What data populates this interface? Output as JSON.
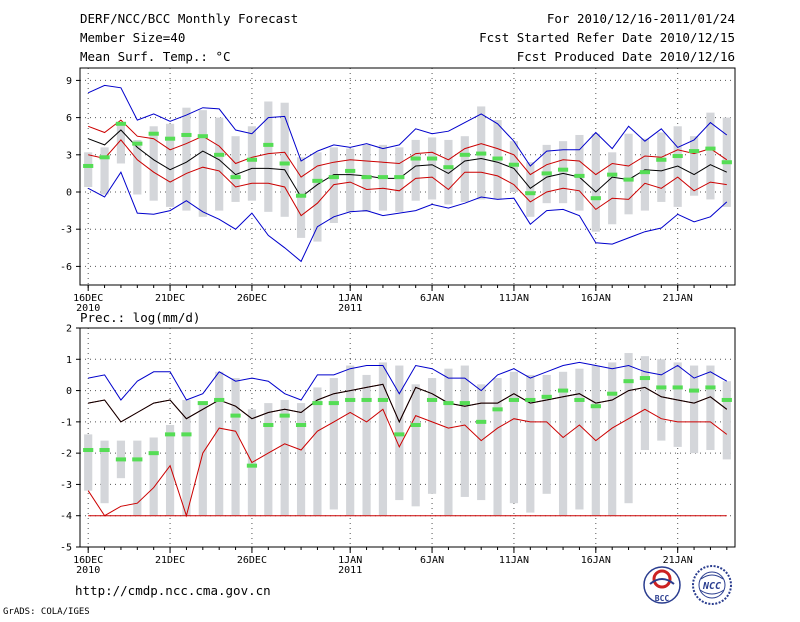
{
  "header": {
    "title": "DERF/NCC/BCC Monthly Forecast",
    "member_size": "Member Size=40",
    "variable": "Mean Surf. Temp.: °C",
    "forecast_period": "For 2010/12/16-2011/01/24",
    "start_date": "Fcst Started Refer Date 2010/12/15",
    "produced_date": "Fcst Produced Date 2010/12/16"
  },
  "footer": {
    "url": "http://cmdp.ncc.cma.gov.cn",
    "credit": "GrADS: COLA/IGES",
    "logo_left_text": "BCC",
    "logo_right_text": "NCC"
  },
  "colors": {
    "envelope": "#0000cc",
    "spread": "#cc0000",
    "mean": "#000000",
    "bar": "#d4d6da",
    "median": "#55dd55",
    "grid": "#555555"
  },
  "chart_data": [
    {
      "type": "line",
      "panel": "temperature",
      "title": "Mean Surf. Temp.: °C",
      "ylabel": "°C",
      "ylim": [
        -7.5,
        10
      ],
      "yticks": [
        9,
        6,
        3,
        0,
        -3,
        -6
      ],
      "xlim": [
        0.5,
        40.5
      ],
      "xticks": [
        {
          "day": 1,
          "label": "16DEC",
          "sublabel": "2010"
        },
        {
          "day": 6,
          "label": "21DEC",
          "sublabel": ""
        },
        {
          "day": 11,
          "label": "26DEC",
          "sublabel": ""
        },
        {
          "day": 17,
          "label": "1JAN",
          "sublabel": "2011"
        },
        {
          "day": 22,
          "label": "6JAN",
          "sublabel": ""
        },
        {
          "day": 27,
          "label": "11JAN",
          "sublabel": ""
        },
        {
          "day": 32,
          "label": "16JAN",
          "sublabel": ""
        },
        {
          "day": 37,
          "label": "21JAN",
          "sublabel": ""
        }
      ],
      "days": [
        1,
        2,
        3,
        4,
        5,
        6,
        7,
        8,
        9,
        10,
        11,
        12,
        13,
        14,
        15,
        16,
        17,
        18,
        19,
        20,
        21,
        22,
        23,
        24,
        25,
        26,
        27,
        28,
        29,
        30,
        31,
        32,
        33,
        34,
        35,
        36,
        37,
        38,
        39,
        40
      ],
      "bar_top": [
        3.2,
        3.6,
        5.5,
        4.2,
        5.3,
        5.5,
        6.8,
        6.6,
        6.0,
        4.5,
        5.3,
        7.3,
        7.2,
        2.8,
        3.2,
        3.6,
        3.5,
        3.8,
        3.8,
        3.6,
        4.2,
        4.4,
        4.2,
        4.5,
        6.9,
        5.8,
        4.1,
        2.4,
        3.8,
        4.1,
        4.6,
        4.7,
        3.2,
        4.7,
        4.3,
        4.8,
        5.3,
        4.5,
        6.4,
        6.0
      ],
      "bar_bottom": [
        0.4,
        -0.2,
        2.3,
        -0.2,
        -0.7,
        -1.2,
        -1.5,
        -2.0,
        -1.5,
        -0.8,
        -0.7,
        -1.6,
        -2.0,
        -3.7,
        -4.0,
        -2.5,
        -1.6,
        -1.6,
        -1.5,
        -1.6,
        -0.7,
        -0.6,
        -1.0,
        -0.8,
        -0.6,
        -0.6,
        0.0,
        -2.0,
        -0.9,
        -0.9,
        -1.5,
        -3.2,
        -2.6,
        -1.8,
        -1.5,
        -0.8,
        -1.2,
        -0.3,
        -0.6,
        -1.2
      ],
      "median": [
        2.1,
        2.8,
        5.5,
        3.9,
        4.7,
        4.3,
        4.6,
        4.5,
        3.0,
        1.2,
        2.6,
        3.8,
        2.3,
        -0.3,
        0.9,
        1.2,
        1.7,
        1.2,
        1.2,
        1.2,
        2.7,
        2.7,
        2.0,
        3.0,
        3.1,
        2.7,
        2.2,
        -0.1,
        1.5,
        1.8,
        1.3,
        -0.5,
        1.4,
        1.0,
        1.6,
        2.6,
        2.9,
        3.3,
        3.5,
        2.4
      ],
      "series": [
        {
          "name": "maximum",
          "color_key": "envelope",
          "values": [
            8.0,
            8.6,
            8.4,
            5.8,
            6.3,
            5.7,
            6.2,
            6.8,
            6.7,
            5.0,
            4.7,
            6.0,
            6.1,
            2.5,
            3.3,
            3.8,
            3.6,
            3.9,
            3.5,
            3.8,
            5.1,
            4.7,
            4.9,
            5.6,
            6.3,
            5.5,
            4.1,
            2.1,
            3.3,
            3.4,
            3.4,
            4.8,
            3.5,
            5.3,
            4.1,
            5.1,
            3.6,
            4.2,
            5.6,
            4.6
          ]
        },
        {
          "name": "upper spread",
          "color_key": "spread",
          "values": [
            5.3,
            4.8,
            5.8,
            4.5,
            4.3,
            3.4,
            3.9,
            4.5,
            3.7,
            2.3,
            2.8,
            3.1,
            3.2,
            1.2,
            2.1,
            2.4,
            2.6,
            2.5,
            2.4,
            2.3,
            3.1,
            3.2,
            2.6,
            3.5,
            3.9,
            3.5,
            3.0,
            1.4,
            2.2,
            2.6,
            2.5,
            1.4,
            2.3,
            2.1,
            2.9,
            2.8,
            3.4,
            3.1,
            3.5,
            2.6
          ]
        },
        {
          "name": "ensemble mean",
          "color_key": "mean",
          "values": [
            4.3,
            3.8,
            5.0,
            3.6,
            2.6,
            1.8,
            2.4,
            3.3,
            2.6,
            1.4,
            1.9,
            1.9,
            1.8,
            -0.4,
            0.6,
            1.4,
            1.4,
            1.3,
            1.1,
            1.1,
            2.1,
            2.2,
            1.5,
            2.5,
            2.7,
            2.4,
            1.9,
            0.3,
            1.2,
            1.5,
            1.2,
            0.0,
            1.2,
            1.0,
            1.8,
            1.7,
            2.1,
            1.4,
            2.2,
            1.6
          ]
        },
        {
          "name": "lower spread",
          "color_key": "spread",
          "values": [
            3.0,
            2.7,
            4.2,
            2.6,
            1.6,
            0.8,
            1.5,
            2.0,
            1.7,
            0.4,
            0.7,
            0.7,
            0.4,
            -1.9,
            -0.9,
            0.6,
            0.8,
            0.2,
            0.3,
            0.1,
            1.1,
            1.2,
            0.2,
            1.6,
            1.6,
            1.3,
            0.6,
            -0.8,
            0.0,
            0.3,
            0.1,
            -1.4,
            -0.5,
            -0.6,
            0.7,
            0.3,
            1.2,
            0.1,
            0.8,
            0.6
          ]
        },
        {
          "name": "minimum",
          "color_key": "envelope",
          "values": [
            0.3,
            -0.4,
            1.6,
            -1.7,
            -1.8,
            -1.5,
            -0.7,
            -1.6,
            -2.2,
            -3.0,
            -1.7,
            -3.5,
            -4.5,
            -5.6,
            -2.8,
            -2.0,
            -1.6,
            -1.5,
            -1.9,
            -1.7,
            -1.5,
            -1.0,
            -1.3,
            -0.9,
            -0.4,
            -0.6,
            -0.5,
            -2.6,
            -1.5,
            -1.4,
            -1.9,
            -4.1,
            -4.2,
            -3.7,
            -3.2,
            -2.9,
            -1.8,
            -2.4,
            -2.0,
            -0.8
          ]
        }
      ]
    },
    {
      "type": "line",
      "panel": "precipitation",
      "title": "Prec.: log(mm/d)",
      "ylabel": "log(mm/d)",
      "ylim": [
        -5,
        2
      ],
      "yticks": [
        2,
        1,
        0,
        -1,
        -2,
        -3,
        -4,
        -5
      ],
      "xlim": [
        0.5,
        40.5
      ],
      "xticks": [
        {
          "day": 1,
          "label": "16DEC",
          "sublabel": "2010"
        },
        {
          "day": 6,
          "label": "21DEC",
          "sublabel": ""
        },
        {
          "day": 11,
          "label": "26DEC",
          "sublabel": ""
        },
        {
          "day": 17,
          "label": "1JAN",
          "sublabel": "2011"
        },
        {
          "day": 22,
          "label": "6JAN",
          "sublabel": ""
        },
        {
          "day": 27,
          "label": "11JAN",
          "sublabel": ""
        },
        {
          "day": 32,
          "label": "16JAN",
          "sublabel": ""
        },
        {
          "day": 37,
          "label": "21JAN",
          "sublabel": ""
        }
      ],
      "days": [
        1,
        2,
        3,
        4,
        5,
        6,
        7,
        8,
        9,
        10,
        11,
        12,
        13,
        14,
        15,
        16,
        17,
        18,
        19,
        20,
        21,
        22,
        23,
        24,
        25,
        26,
        27,
        28,
        29,
        30,
        31,
        32,
        33,
        34,
        35,
        36,
        37,
        38,
        39,
        40
      ],
      "bar_top": [
        -1.4,
        -1.6,
        -1.6,
        -1.6,
        -1.5,
        -1.1,
        -0.3,
        -0.4,
        0.6,
        0.4,
        -0.6,
        -0.4,
        -0.3,
        -0.4,
        0.1,
        0.4,
        0.8,
        0.5,
        0.9,
        0.8,
        0.2,
        0.4,
        0.7,
        0.8,
        0.2,
        0.4,
        0.6,
        0.5,
        0.5,
        0.6,
        0.7,
        0.8,
        0.9,
        1.2,
        1.1,
        1.0,
        0.9,
        0.8,
        0.8,
        0.3
      ],
      "bar_bottom": [
        -3.2,
        -3.6,
        -2.8,
        -4.0,
        -4.0,
        -4.0,
        -4.0,
        -4.0,
        -4.0,
        -4.0,
        -4.0,
        -4.0,
        -4.0,
        -4.0,
        -4.0,
        -3.8,
        -4.0,
        -4.0,
        -4.0,
        -3.5,
        -3.7,
        -3.3,
        -4.0,
        -3.4,
        -3.5,
        -4.0,
        -3.6,
        -3.9,
        -3.3,
        -4.0,
        -3.8,
        -4.0,
        -4.0,
        -3.6,
        -1.9,
        -1.6,
        -1.8,
        -2.0,
        -1.9,
        -2.2
      ],
      "median": [
        -1.9,
        -1.9,
        -2.2,
        -2.2,
        -2.0,
        -1.4,
        -1.4,
        -0.4,
        -0.3,
        -0.8,
        -2.4,
        -1.1,
        -0.8,
        -1.1,
        -0.4,
        -0.4,
        -0.3,
        -0.3,
        -0.3,
        -1.4,
        -1.1,
        -0.3,
        -0.4,
        -0.4,
        -1.0,
        -0.6,
        -0.3,
        -0.3,
        -0.2,
        0.0,
        -0.3,
        -0.5,
        -0.1,
        0.3,
        0.4,
        0.1,
        0.1,
        0.0,
        0.1,
        -0.3
      ],
      "series": [
        {
          "name": "maximum",
          "color_key": "envelope",
          "values": [
            0.4,
            0.5,
            -0.3,
            0.3,
            0.6,
            0.6,
            -0.3,
            -0.1,
            0.6,
            0.3,
            0.4,
            0.3,
            -0.1,
            -0.3,
            0.5,
            0.5,
            0.7,
            0.8,
            0.8,
            -0.1,
            0.8,
            0.7,
            0.4,
            0.4,
            0.0,
            0.5,
            0.7,
            0.4,
            0.6,
            0.8,
            0.9,
            0.8,
            0.7,
            0.8,
            0.6,
            0.5,
            0.8,
            0.4,
            0.6,
            0.3
          ]
        },
        {
          "name": "upper spread",
          "color_key": "spread",
          "values": [
            -0.4,
            -0.3,
            -1.0,
            -0.7,
            -0.4,
            -0.3,
            -0.9,
            -0.6,
            -0.3,
            -0.5,
            -0.9,
            -0.7,
            -0.6,
            -0.7,
            -0.3,
            -0.1,
            0.0,
            0.1,
            0.2,
            -1.0,
            0.1,
            -0.1,
            -0.4,
            -0.5,
            -0.4,
            -0.4,
            -0.1,
            -0.4,
            -0.3,
            -0.2,
            -0.1,
            -0.4,
            -0.3,
            0.0,
            0.1,
            -0.2,
            -0.3,
            -0.4,
            -0.2,
            -0.6
          ]
        },
        {
          "name": "ensemble mean",
          "color_key": "mean",
          "values": [
            -0.4,
            -0.3,
            -1.0,
            -0.7,
            -0.4,
            -0.3,
            -0.9,
            -0.6,
            -0.3,
            -0.5,
            -0.9,
            -0.7,
            -0.6,
            -0.7,
            -0.3,
            -0.1,
            0.0,
            0.1,
            0.2,
            -1.0,
            0.1,
            -0.1,
            -0.4,
            -0.5,
            -0.4,
            -0.4,
            -0.1,
            -0.4,
            -0.3,
            -0.2,
            -0.1,
            -0.4,
            -0.3,
            0.0,
            0.1,
            -0.2,
            -0.3,
            -0.4,
            -0.2,
            -0.6
          ]
        },
        {
          "name": "lower spread",
          "color_key": "spread",
          "values": [
            -3.2,
            -4.0,
            -3.7,
            -3.6,
            -3.1,
            -2.4,
            -4.0,
            -2.0,
            -1.2,
            -1.3,
            -2.3,
            -2.0,
            -1.7,
            -1.9,
            -1.3,
            -1.0,
            -0.7,
            -1.0,
            -0.6,
            -1.8,
            -0.8,
            -1.0,
            -1.2,
            -1.1,
            -1.6,
            -1.2,
            -0.9,
            -1.0,
            -1.0,
            -1.5,
            -1.1,
            -1.6,
            -1.2,
            -0.9,
            -0.6,
            -0.9,
            -1.0,
            -1.0,
            -1.0,
            -1.4
          ]
        },
        {
          "name": "minimum",
          "color_key": "spread",
          "values": [
            -4.0,
            -4.0,
            -4.0,
            -4.0,
            -4.0,
            -4.0,
            -4.0,
            -4.0,
            -4.0,
            -4.0,
            -4.0,
            -4.0,
            -4.0,
            -4.0,
            -4.0,
            -4.0,
            -4.0,
            -4.0,
            -4.0,
            -4.0,
            -4.0,
            -4.0,
            -4.0,
            -4.0,
            -4.0,
            -4.0,
            -4.0,
            -4.0,
            -4.0,
            -4.0,
            -4.0,
            -4.0,
            -4.0,
            -4.0,
            -4.0,
            -4.0,
            -4.0,
            -4.0,
            -4.0,
            -4.0
          ]
        }
      ]
    }
  ]
}
